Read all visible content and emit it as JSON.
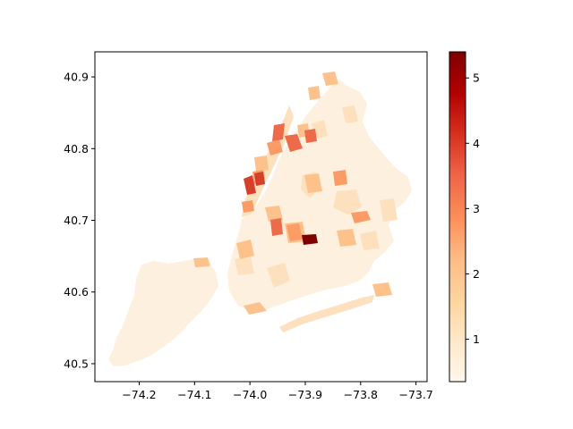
{
  "map": {
    "x_axis": {
      "range": [
        -74.28,
        -73.68
      ],
      "ticks": [
        {
          "value": -74.2,
          "label": "−74.2"
        },
        {
          "value": -74.1,
          "label": "−74.1"
        },
        {
          "value": -74.0,
          "label": "−74.0"
        },
        {
          "value": -73.9,
          "label": "−73.9"
        },
        {
          "value": -73.8,
          "label": "−73.8"
        },
        {
          "value": -73.7,
          "label": "−73.7"
        }
      ]
    },
    "y_axis": {
      "range": [
        40.475,
        40.935
      ],
      "ticks": [
        {
          "value": 40.5,
          "label": "40.5"
        },
        {
          "value": 40.6,
          "label": "40.6"
        },
        {
          "value": 40.7,
          "label": "40.7"
        },
        {
          "value": 40.8,
          "label": "40.8"
        },
        {
          "value": 40.9,
          "label": "40.9"
        }
      ]
    },
    "colorbar": {
      "colormap": "OrRd",
      "range": [
        0.35,
        5.4
      ],
      "ticks": [
        {
          "value": 1,
          "label": "1"
        },
        {
          "value": 2,
          "label": "2"
        },
        {
          "value": 3,
          "label": "3"
        },
        {
          "value": 4,
          "label": "4"
        },
        {
          "value": 5,
          "label": "5"
        }
      ],
      "stops": [
        "#fff7ec",
        "#fee8c8",
        "#fdd49e",
        "#fdbb84",
        "#fc8d59",
        "#ef6548",
        "#d7301f",
        "#b30000",
        "#7f0000"
      ]
    },
    "colors": {
      "base": "#fef0df",
      "light": "#fde1bf",
      "mid": "#fdc28c",
      "midhigh": "#fb9b66",
      "high": "#ee6b4a",
      "veryhigh": "#d6402a",
      "max": "#800000"
    }
  }
}
